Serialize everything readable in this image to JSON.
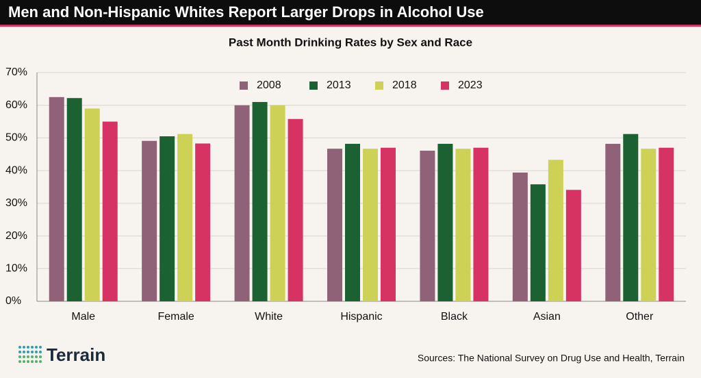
{
  "chart_data": {
    "type": "bar",
    "title": "Men and Non-Hispanic Whites Report Larger Drops in Alcohol Use",
    "subtitle": "Past Month Drinking Rates by Sex and Race",
    "categories": [
      "Male",
      "Female",
      "White",
      "Hispanic",
      "Black",
      "Asian",
      "Other"
    ],
    "series": [
      {
        "name": "2008",
        "color": "#8f6278",
        "values": [
          62.5,
          49.1,
          60,
          46.7,
          46.1,
          39.4,
          48.2
        ]
      },
      {
        "name": "2013",
        "color": "#1b6131",
        "values": [
          62.2,
          50.5,
          61,
          48.2,
          48.2,
          35.8,
          51.2
        ]
      },
      {
        "name": "2018",
        "color": "#cdd257",
        "values": [
          59,
          51.2,
          60,
          46.7,
          46.7,
          43.3,
          46.7
        ]
      },
      {
        "name": "2023",
        "color": "#d63262",
        "values": [
          55,
          48.3,
          55.8,
          47,
          47,
          34.1,
          47
        ]
      }
    ],
    "ylim": [
      0,
      70
    ],
    "yticks": [
      {
        "value": 0,
        "label": "0%"
      },
      {
        "value": 10,
        "label": "10%"
      },
      {
        "value": 20,
        "label": "20%"
      },
      {
        "value": 30,
        "label": "30%"
      },
      {
        "value": 40,
        "label": "40%"
      },
      {
        "value": 50,
        "label": "50%"
      },
      {
        "value": 60,
        "label": "60%"
      },
      {
        "value": 70,
        "label": "70%"
      }
    ],
    "grid": true,
    "legend": "top",
    "brand": "Terrain",
    "source": "Sources: The National Survey on Drug Use and Health, Terrain"
  }
}
